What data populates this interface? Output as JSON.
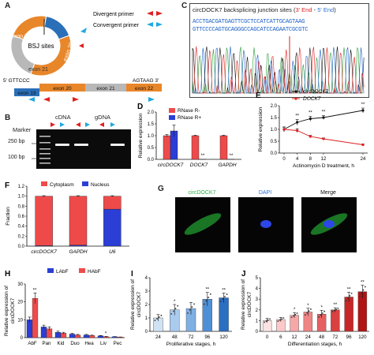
{
  "panels": {
    "A": {
      "label": "A",
      "ring_segments": [
        {
          "label": "exon 19",
          "color": "#2a6fb8"
        },
        {
          "label": "exon 20",
          "color": "#e8862a"
        },
        {
          "label": "exon 21",
          "color": "#b8b8b8"
        },
        {
          "label": "exon 22",
          "color": "#e8862a"
        }
      ],
      "center_label": "BSJ sites",
      "legend": [
        {
          "label": "Divergent primer",
          "color": "#e02020"
        },
        {
          "label": "Convergent primer",
          "color": "#20a8e0"
        }
      ],
      "linear_left": "5' GTTCCC",
      "linear_right": "AGTAAG 3'",
      "linear_exons": [
        {
          "label": "exon 19",
          "color": "#2a6fb8"
        },
        {
          "label": "exon 20",
          "color": "#e8862a"
        },
        {
          "label": "exon 21",
          "color": "#b8b8b8"
        },
        {
          "label": "exon 22",
          "color": "#e8862a"
        }
      ]
    },
    "C": {
      "label": "C",
      "title_prefix": "circDOCK7 backsplicing junction sites (",
      "title_end3": "3' End",
      "title_dash": " - ",
      "title_end5": "5' End",
      "title_suffix": ")",
      "seq_line1": "ACCTGACGATGAGTTCGCTCCATCATTGCAGTAAG",
      "seq_line2": "GTTCCCCAGTGCAGGGCCAGCATCCAGAATCGCGTC"
    },
    "B": {
      "label": "B",
      "col_cdna": "cDNA",
      "col_gdna": "gDNA",
      "marker": "Marker",
      "size_250": "250 bp",
      "size_100": "100 bp"
    },
    "G": {
      "label": "G",
      "titles": [
        "circDOCK7",
        "DAPI",
        "Merge"
      ]
    }
  },
  "chart_data": [
    {
      "panel": "D",
      "type": "bar",
      "categories": [
        "circDOCK7",
        "DOCK7",
        "GAPDH"
      ],
      "series": [
        {
          "name": "RNase R-",
          "color": "#ef4a4a",
          "values": [
            1.0,
            1.0,
            1.0
          ],
          "errors": [
            0.05,
            0.02,
            0.02
          ]
        },
        {
          "name": "RNase R+",
          "color": "#2b3fd6",
          "values": [
            1.2,
            0.01,
            0.01
          ],
          "errors": [
            0.25,
            0.0,
            0.0
          ]
        }
      ],
      "sig": [
        "",
        "**",
        "**"
      ],
      "ylabel": "Relative expression",
      "ylim": [
        0,
        2.0
      ],
      "yticks": [
        "0.0",
        "0.5",
        "1.0",
        "1.5",
        "2.0"
      ]
    },
    {
      "panel": "E",
      "type": "line",
      "x": [
        0,
        4,
        8,
        12,
        24
      ],
      "xticks": [
        "0",
        "4",
        "8",
        "12",
        "24"
      ],
      "series": [
        {
          "name": "circDOCK7",
          "color": "#111111",
          "values": [
            1.0,
            1.3,
            1.45,
            1.5,
            1.8
          ],
          "errors": [
            0.1,
            0.12,
            0.1,
            0.08,
            0.1
          ]
        },
        {
          "name": "DOCK7",
          "color": "#e02020",
          "values": [
            1.0,
            0.95,
            0.7,
            0.6,
            0.35
          ],
          "errors": [
            0.1,
            0.08,
            0.05,
            0.04,
            0.03
          ]
        }
      ],
      "sig": [
        "",
        "**",
        "**",
        "**",
        "**"
      ],
      "xlabel": "Actinomycin D treatment, h",
      "ylabel": "Relative expression",
      "ylim": [
        0,
        2.0
      ],
      "yticks": [
        "0.0",
        "0.5",
        "1.0",
        "1.5",
        "2.0"
      ]
    },
    {
      "panel": "F",
      "type": "bar",
      "stacked": true,
      "categories": [
        "circDOCK7",
        "GAPDH",
        "U6"
      ],
      "series": [
        {
          "name": "Cytoplasm",
          "color": "#ef4a4a",
          "values": [
            0.99,
            0.98,
            0.26
          ]
        },
        {
          "name": "Nucleus",
          "color": "#2b3fd6",
          "values": [
            0.01,
            0.02,
            0.74
          ]
        }
      ],
      "ylabel": "Fraction",
      "ylim": [
        0,
        1.2
      ],
      "yticks": [
        "0.0",
        "0.2",
        "0.4",
        "0.6",
        "0.8",
        "1.0",
        "1.2"
      ]
    },
    {
      "panel": "H",
      "type": "bar",
      "categories": [
        "AbF",
        "Pan",
        "Kid",
        "Duo",
        "Hea",
        "Liv",
        "Pec"
      ],
      "series": [
        {
          "name": "LAbF",
          "color": "#2b3fd6",
          "values": [
            10,
            6,
            3,
            2,
            1.5,
            1,
            0.5
          ],
          "errors": [
            1.5,
            1.0,
            0.6,
            0.4,
            0.3,
            0.2,
            0.1
          ]
        },
        {
          "name": "HAbF",
          "color": "#ef4a4a",
          "values": [
            22,
            5,
            2.5,
            1.5,
            1.2,
            0.5,
            0.3
          ],
          "errors": [
            3,
            1.0,
            0.5,
            0.3,
            0.2,
            0.2,
            0.1
          ]
        }
      ],
      "sig": [
        "**",
        "",
        "",
        "",
        "",
        "*",
        ""
      ],
      "ylabel": "Relative expression of\ncircDOCK7",
      "ylim": [
        0,
        30
      ],
      "yticks": [
        "0",
        "10",
        "20",
        "30"
      ]
    },
    {
      "panel": "I",
      "type": "bar",
      "categories": [
        "24",
        "48",
        "72",
        "96",
        "120"
      ],
      "values": [
        1.0,
        1.6,
        1.7,
        2.4,
        2.5
      ],
      "errors": [
        0.25,
        0.4,
        0.45,
        0.5,
        0.35
      ],
      "sig": [
        "",
        "*",
        "",
        "**",
        "**"
      ],
      "colors": [
        "#cfe3f5",
        "#a9cbee",
        "#7fb0e4",
        "#4f8fd6",
        "#2a6fc2"
      ],
      "xlabel": "Proliferative stages, h",
      "ylabel": "Relative expression of\ncircDOCK7",
      "ylim": [
        0,
        4
      ],
      "yticks": [
        "0",
        "1",
        "2",
        "3",
        "4"
      ]
    },
    {
      "panel": "J",
      "type": "bar",
      "categories": [
        "0",
        "6",
        "12",
        "24",
        "48",
        "72",
        "96",
        "120"
      ],
      "values": [
        1.0,
        1.1,
        1.5,
        1.8,
        1.6,
        2.0,
        3.2,
        3.7
      ],
      "errors": [
        0.2,
        0.2,
        0.25,
        0.35,
        0.35,
        0.2,
        0.45,
        0.6
      ],
      "sig": [
        "",
        "",
        "*",
        "*",
        "*",
        "**",
        "**",
        "**"
      ],
      "colors": [
        "#fde3e3",
        "#fbc9c9",
        "#f6a8a8",
        "#ef8585",
        "#e66161",
        "#d94040",
        "#c82626",
        "#b01414"
      ],
      "xlabel": "Differentiation stages, h",
      "ylabel": "Relative expression of\ncircDOCK7",
      "ylim": [
        0,
        5
      ],
      "yticks": [
        "0",
        "1",
        "2",
        "3",
        "4",
        "5"
      ]
    }
  ]
}
